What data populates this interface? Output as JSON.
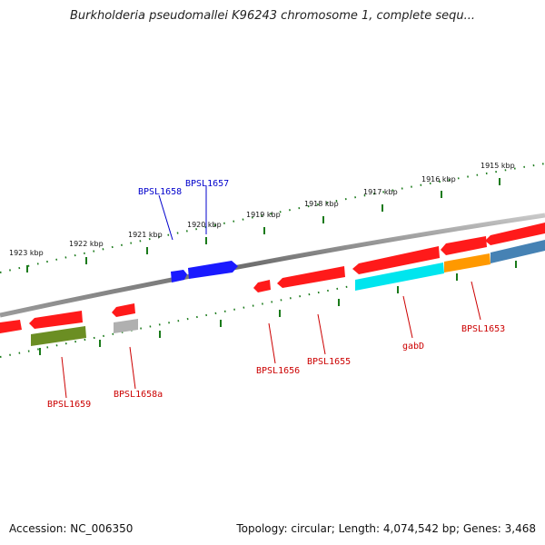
{
  "title": "Burkholderia pseudomallei K96243 chromosome 1, complete sequ...",
  "footer": {
    "accession": "Accession: NC_006350",
    "topology": "Topology: circular; Length: 4,074,542 bp; Genes: 3,468"
  },
  "kbp_labels": [
    "1915 kbp",
    "1916 kbp",
    "1917 kbp",
    "1918 kbp",
    "1919 kbp",
    "1920 kbp",
    "1921 kbp",
    "1922 kbp",
    "1923 kbp"
  ],
  "gene_labels": {
    "bpsl1658": "BPSL1658",
    "bpsl1657": "BPSL1657",
    "bpsl1659": "BPSL1659",
    "bpsl1658a": "BPSL1658a",
    "bpsl1656": "BPSL1656",
    "bpsl1655": "BPSL1655",
    "gabd": "gabD",
    "bpsl1653": "BPSL1653"
  },
  "colors": {
    "red_gene": "#ff1a1a",
    "blue_gene": "#1a1aff",
    "cyan_gene": "#00e5ee",
    "orange_gene": "#ff9900",
    "steelblue_gene": "#4682b4",
    "olive_gene": "#6b8e23",
    "gray_gene": "#b0b0b0",
    "red_label": "#cc0000",
    "blue_label": "#0000cc",
    "ticks": "#1a7a1a"
  }
}
